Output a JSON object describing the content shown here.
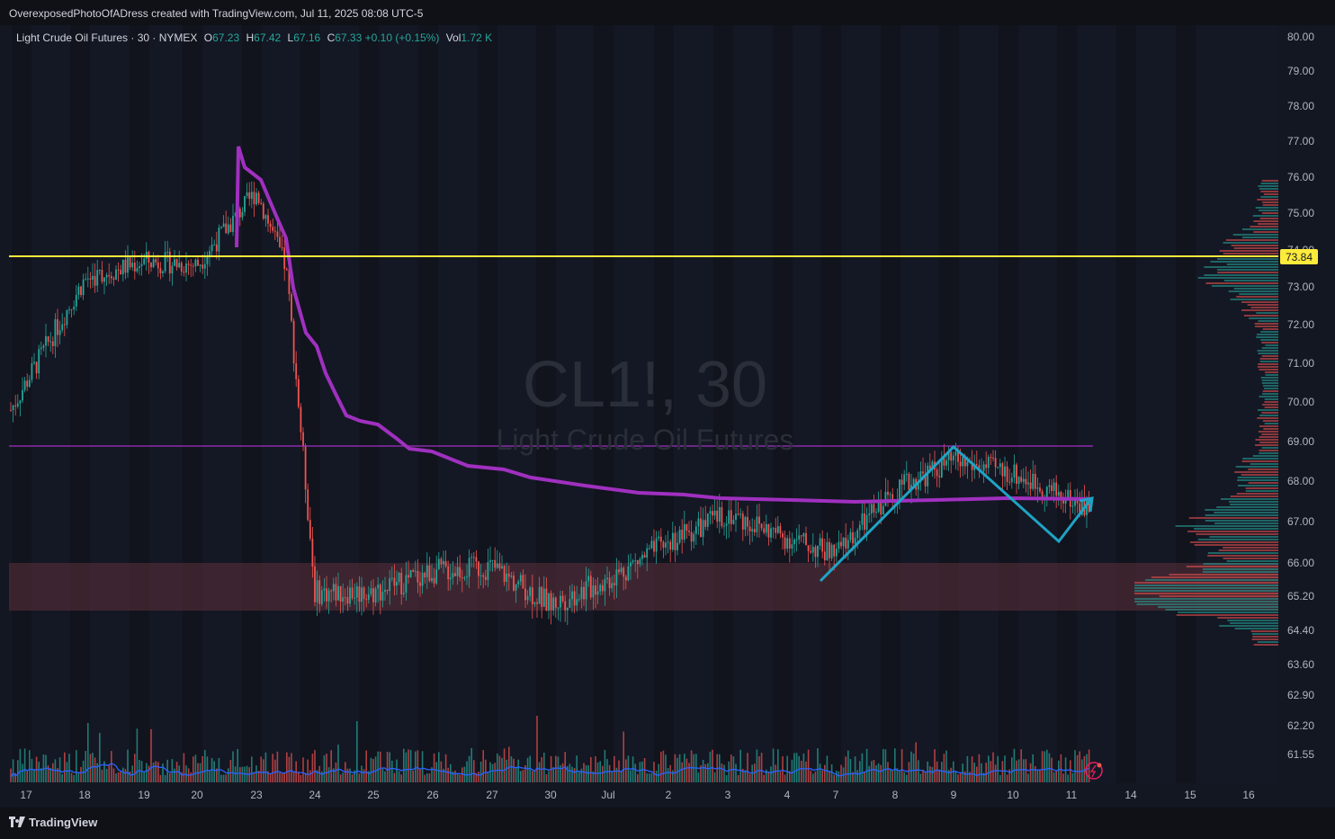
{
  "header": {
    "caption": "OverexposedPhotoOfADress created with TradingView.com, Jul 11, 2025 08:08 UTC-5"
  },
  "legend": {
    "symbol": "Light Crude Oil Futures · 30 · NYMEX",
    "o_label": "O",
    "o": "67.23",
    "h_label": "H",
    "h": "67.42",
    "l_label": "L",
    "l": "67.16",
    "c_label": "C",
    "c": "67.33",
    "change": "+0.10 (+0.15%)",
    "vol_label": "Vol",
    "vol": "1.72 K"
  },
  "watermark": {
    "ticker": "CL1!, 30",
    "name": "Light Crude Oil Futures"
  },
  "footer": {
    "brand": "TradingView"
  },
  "colors": {
    "background": "#131722",
    "up": "#26a69a",
    "down": "#ef5350",
    "vwap": "#a030c0",
    "support": "#ffeb3b",
    "pattern": "#1fa3c4",
    "zone": "#4a2a34",
    "volume_ma": "#2962ff"
  },
  "chart_data": {
    "type": "candlestick",
    "symbol": "CL1!",
    "timeframe": "30",
    "y_axis_ticks": [
      "80.00",
      "79.00",
      "78.00",
      "77.00",
      "76.00",
      "75.00",
      "74.00",
      "73.00",
      "72.00",
      "71.00",
      "70.00",
      "69.00",
      "68.00",
      "67.00",
      "66.00",
      "65.20",
      "64.40",
      "63.60",
      "62.90",
      "62.20",
      "61.55"
    ],
    "x_axis_ticks": [
      "17",
      "18",
      "19",
      "20",
      "23",
      "24",
      "25",
      "26",
      "27",
      "30",
      "Jul",
      "2",
      "3",
      "4",
      "7",
      "8",
      "9",
      "10",
      "11",
      "14",
      "15",
      "16"
    ],
    "price_label": "73.84",
    "ylim": [
      61.3,
      80.3
    ],
    "price_path": [
      [
        "17",
        69.8
      ],
      [
        "18",
        73.2
      ],
      [
        "19",
        73.7
      ],
      [
        "20",
        73.6
      ],
      [
        "23",
        75.6
      ],
      [
        "23.5",
        73.5
      ],
      [
        "24",
        65.3
      ],
      [
        "25",
        65.3
      ],
      [
        "26",
        65.8
      ],
      [
        "27",
        65.9
      ],
      [
        "30",
        65.0
      ],
      [
        "Jul",
        65.6
      ],
      [
        "2",
        66.5
      ],
      [
        "3",
        67.2
      ],
      [
        "4",
        66.6
      ],
      [
        "7",
        66.2
      ],
      [
        "8",
        67.8
      ],
      [
        "9",
        68.5
      ],
      [
        "10",
        68.2
      ],
      [
        "11",
        67.3
      ]
    ],
    "annotations": {
      "horizontal_support": 73.84,
      "horizontal_resistance": 68.9,
      "demand_zone": [
        64.9,
        66.0
      ]
    }
  }
}
